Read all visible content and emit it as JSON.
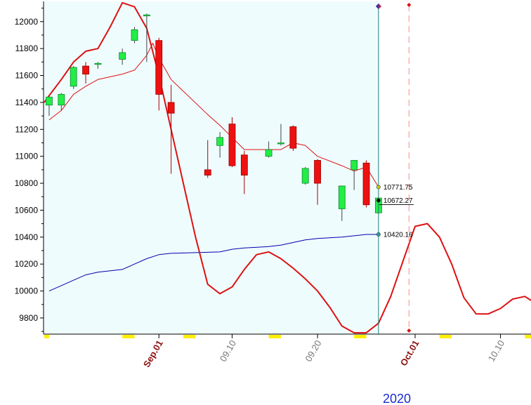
{
  "chart_data": {
    "type": "candlestick",
    "title": "",
    "xlabel": "2020",
    "ylabel": "",
    "ylim": [
      9680,
      12150
    ],
    "y_ticks": [
      9800,
      10000,
      10200,
      10400,
      10600,
      10800,
      11000,
      11200,
      11400,
      11600,
      11800,
      12000
    ],
    "x_ticks": [
      {
        "label": "Sep.01",
        "x": 11,
        "style": "month"
      },
      {
        "label": "09.10",
        "x": 17,
        "style": "day"
      },
      {
        "label": "09.20",
        "x": 24,
        "style": "day"
      },
      {
        "label": "Oct.01",
        "x": 32,
        "style": "month"
      },
      {
        "label": "10.10",
        "x": 39,
        "style": "day"
      }
    ],
    "x_range": [
      1.6,
      41.5
    ],
    "candles": [
      {
        "x": 2,
        "open": 11380,
        "high": 11450,
        "low": 11300,
        "close": 11440
      },
      {
        "x": 3,
        "open": 11380,
        "high": 11470,
        "low": 11340,
        "close": 11460
      },
      {
        "x": 4,
        "open": 11520,
        "high": 11670,
        "low": 11500,
        "close": 11660
      },
      {
        "x": 5,
        "open": 11670,
        "high": 11700,
        "low": 11540,
        "close": 11610
      },
      {
        "x": 6,
        "open": 11690,
        "high": 11700,
        "low": 11650,
        "close": 11690
      },
      {
        "x": 8,
        "open": 11720,
        "high": 11800,
        "low": 11680,
        "close": 11770
      },
      {
        "x": 9,
        "open": 11860,
        "high": 11960,
        "low": 11840,
        "close": 11940
      },
      {
        "x": 10,
        "open": 12050,
        "high": 12060,
        "low": 11700,
        "close": 12050
      },
      {
        "x": 11,
        "open": 11860,
        "high": 11880,
        "low": 11340,
        "close": 11460
      },
      {
        "x": 12,
        "open": 11400,
        "high": 11530,
        "low": 10870,
        "close": 11320
      },
      {
        "x": 15,
        "open": 10900,
        "high": 11120,
        "low": 10840,
        "close": 10860
      },
      {
        "x": 16,
        "open": 11080,
        "high": 11180,
        "low": 10990,
        "close": 11140
      },
      {
        "x": 17,
        "open": 11240,
        "high": 11290,
        "low": 10920,
        "close": 10930
      },
      {
        "x": 18,
        "open": 11010,
        "high": 11040,
        "low": 10720,
        "close": 10860
      },
      {
        "x": 20,
        "open": 11000,
        "high": 11110,
        "low": 10990,
        "close": 11050
      },
      {
        "x": 21,
        "open": 11100,
        "high": 11240,
        "low": 11080,
        "close": 11100
      },
      {
        "x": 22,
        "open": 11220,
        "high": 11230,
        "low": 11040,
        "close": 11060
      },
      {
        "x": 23,
        "open": 10800,
        "high": 10920,
        "low": 10790,
        "close": 10910
      },
      {
        "x": 24,
        "open": 10970,
        "high": 10980,
        "low": 10640,
        "close": 10800
      },
      {
        "x": 26,
        "open": 10610,
        "high": 10780,
        "low": 10520,
        "close": 10780
      },
      {
        "x": 27,
        "open": 10900,
        "high": 10970,
        "low": 10750,
        "close": 10970
      },
      {
        "x": 28,
        "open": 10950,
        "high": 10970,
        "low": 10620,
        "close": 10640
      },
      {
        "x": 29,
        "open": 10580,
        "high": 10700,
        "low": 10570,
        "close": 10690
      }
    ],
    "series": [
      {
        "name": "",
        "color": "#dd1111",
        "width": 1,
        "points": [
          [
            2,
            11270
          ],
          [
            3,
            11340
          ],
          [
            4,
            11460
          ],
          [
            5,
            11520
          ],
          [
            6,
            11570
          ],
          [
            8,
            11610
          ],
          [
            9,
            11640
          ],
          [
            10,
            11750
          ],
          [
            10.5,
            11840
          ],
          [
            11,
            11730
          ],
          [
            12,
            11570
          ],
          [
            15,
            11310
          ],
          [
            16,
            11230
          ],
          [
            17,
            11140
          ],
          [
            18,
            11050
          ],
          [
            20,
            11050
          ],
          [
            21,
            11050
          ],
          [
            22,
            11100
          ],
          [
            23,
            11080
          ],
          [
            24,
            11000
          ],
          [
            26,
            10930
          ],
          [
            27,
            10890
          ],
          [
            28,
            10920
          ],
          [
            29,
            10771.75
          ]
        ]
      },
      {
        "name": "",
        "color": "#0000aa",
        "width": 1,
        "points": [
          [
            2,
            10000
          ],
          [
            3,
            10040
          ],
          [
            4,
            10080
          ],
          [
            5,
            10120
          ],
          [
            6,
            10140
          ],
          [
            8,
            10160
          ],
          [
            9,
            10200
          ],
          [
            10,
            10240
          ],
          [
            11,
            10270
          ],
          [
            12,
            10280
          ],
          [
            14,
            10285
          ],
          [
            16,
            10290
          ],
          [
            17,
            10310
          ],
          [
            18,
            10320
          ],
          [
            20,
            10330
          ],
          [
            21,
            10340
          ],
          [
            22,
            10360
          ],
          [
            23,
            10380
          ],
          [
            24,
            10390
          ],
          [
            26,
            10400
          ],
          [
            27,
            10410
          ],
          [
            28,
            10420
          ],
          [
            29,
            10420.16
          ]
        ]
      },
      {
        "name": "",
        "color": "#dd1111",
        "width": 2,
        "points": [
          [
            1.6,
            11400
          ],
          [
            2,
            11450
          ],
          [
            3,
            11570
          ],
          [
            4,
            11700
          ],
          [
            5,
            11780
          ],
          [
            6,
            11800
          ],
          [
            7,
            11960
          ],
          [
            8,
            12140
          ],
          [
            9,
            12110
          ],
          [
            10,
            11950
          ],
          [
            11,
            11600
          ],
          [
            12,
            11200
          ],
          [
            13,
            10800
          ],
          [
            14,
            10400
          ],
          [
            15,
            10050
          ],
          [
            16,
            9980
          ],
          [
            17,
            10030
          ],
          [
            18,
            10160
          ],
          [
            19,
            10270
          ],
          [
            20,
            10290
          ],
          [
            21,
            10240
          ],
          [
            22,
            10170
          ],
          [
            23,
            10090
          ],
          [
            24,
            10000
          ],
          [
            25,
            9880
          ],
          [
            26,
            9740
          ],
          [
            27,
            9690
          ],
          [
            28,
            9690
          ],
          [
            29,
            9760
          ],
          [
            30,
            9960
          ],
          [
            31,
            10220
          ],
          [
            32,
            10480
          ],
          [
            33,
            10500
          ],
          [
            34,
            10400
          ],
          [
            35,
            10200
          ],
          [
            36,
            9950
          ],
          [
            37,
            9830
          ],
          [
            38,
            9830
          ],
          [
            39,
            9870
          ],
          [
            40,
            9940
          ],
          [
            41,
            9960
          ],
          [
            41.5,
            9930
          ]
        ]
      }
    ],
    "value_labels": [
      {
        "text": "10771.75",
        "x": 29,
        "y": 10771.75,
        "color": "#cccc00"
      },
      {
        "text": "10672.27",
        "x": 29,
        "y": 10672.27,
        "color": "#000000"
      },
      {
        "text": "10420.16",
        "x": 29,
        "y": 10420.16,
        "color": "#20a0a0"
      }
    ],
    "year_label": "2020",
    "colors": {
      "up": "#22ee44",
      "down": "#ee1111",
      "history_bg": "#effcfe",
      "cursor": "#1a7a7a",
      "dashed": "#ff8888",
      "month_label": "#8b1010",
      "day_label": "#777777",
      "year": "#1a2bd0",
      "weekend_marker": "#ffee00"
    }
  }
}
